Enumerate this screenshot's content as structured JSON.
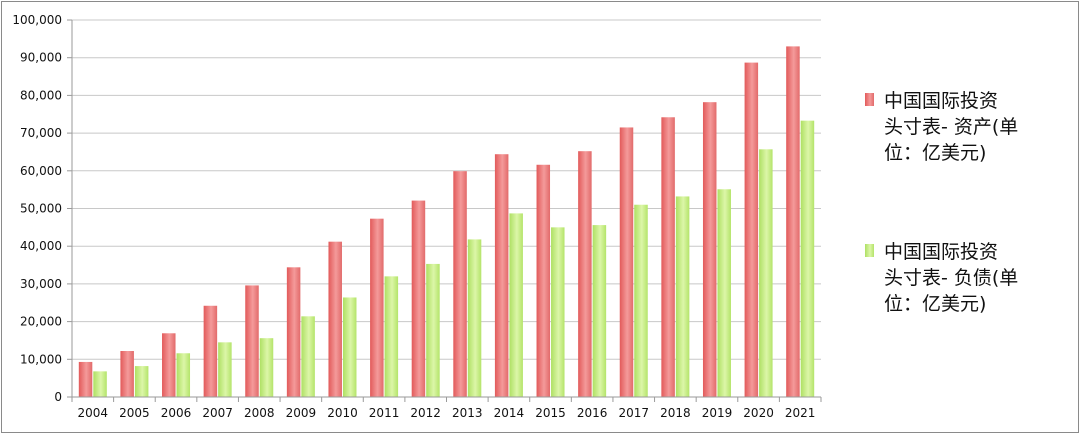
{
  "chart_data": {
    "type": "bar",
    "categories": [
      "2004",
      "2005",
      "2006",
      "2007",
      "2008",
      "2009",
      "2010",
      "2011",
      "2012",
      "2013",
      "2014",
      "2015",
      "2016",
      "2017",
      "2018",
      "2019",
      "2020",
      "2021"
    ],
    "series": [
      {
        "name": "中国国际投资头寸表- 资产(单位：亿美元)",
        "legend_lines": [
          "中国国际投资",
          "头寸表- 资产(单",
          "位：亿美元)"
        ],
        "color": "#f08a8a",
        "values": [
          9300,
          12200,
          16900,
          24200,
          29600,
          34400,
          41200,
          47300,
          52100,
          59900,
          64400,
          61600,
          65200,
          71500,
          74200,
          78200,
          88700,
          93000
        ]
      },
      {
        "name": "中国国际投资头寸表- 负债(单位：亿美元)",
        "legend_lines": [
          "中国国际投资",
          "头寸表- 负债(单",
          "位：亿美元)"
        ],
        "color": "#c8ec84",
        "values": [
          6800,
          8200,
          11600,
          14500,
          15600,
          21400,
          26400,
          32000,
          35300,
          41800,
          48700,
          45000,
          45600,
          51000,
          53200,
          55100,
          65700,
          73300
        ]
      }
    ],
    "ylim": [
      0,
      100000
    ],
    "yticks": [
      0,
      10000,
      20000,
      30000,
      40000,
      50000,
      60000,
      70000,
      80000,
      90000,
      100000
    ],
    "ytick_labels": [
      "0",
      "10,000",
      "20,000",
      "30,000",
      "40,000",
      "50,000",
      "60,000",
      "70,000",
      "80,000",
      "90,000",
      "100,000"
    ],
    "grid": true,
    "legend_position": "right"
  }
}
